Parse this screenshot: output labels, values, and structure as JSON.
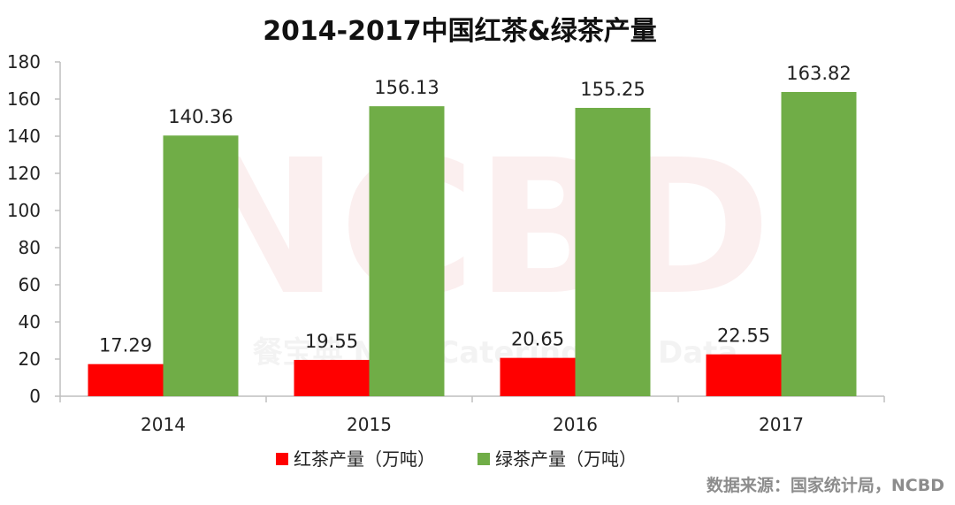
{
  "title": "2014-2017中国红茶&绿茶产量",
  "source_note": "数据来源：国家统计局，NCBD",
  "watermark": {
    "main": "NCBD",
    "sub": "餐宝典 New Catering Big Data"
  },
  "chart_data": {
    "type": "bar",
    "title": "2014-2017中国红茶&绿茶产量",
    "categories": [
      "2014",
      "2015",
      "2016",
      "2017"
    ],
    "series": [
      {
        "name": "红茶产量（万吨）",
        "color": "#ff0000",
        "values": [
          17.29,
          19.55,
          20.65,
          22.55
        ]
      },
      {
        "name": "绿茶产量（万吨）",
        "color": "#70ad47",
        "values": [
          140.36,
          156.13,
          155.25,
          163.82
        ]
      }
    ],
    "ylim": [
      0,
      180
    ],
    "yticks": [
      0,
      20,
      40,
      60,
      80,
      100,
      120,
      140,
      160,
      180
    ],
    "grid": false,
    "legend_position": "bottom",
    "data_labels": true
  }
}
